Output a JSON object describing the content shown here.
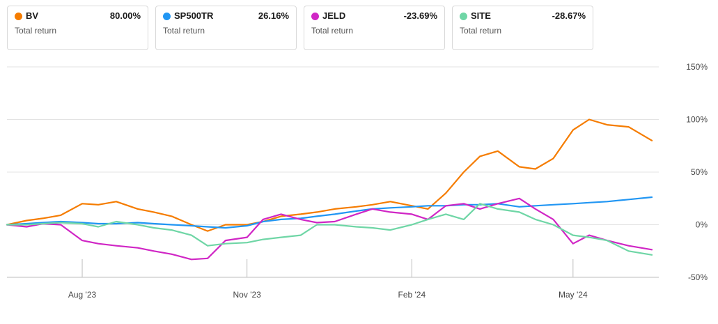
{
  "legend": [
    {
      "ticker": "BV",
      "value": "80.00%",
      "label": "Total return",
      "color": "#f57c00"
    },
    {
      "ticker": "SP500TR",
      "value": "26.16%",
      "label": "Total return",
      "color": "#2196f3"
    },
    {
      "ticker": "JELD",
      "value": "-23.69%",
      "label": "Total return",
      "color": "#d026c5"
    },
    {
      "ticker": "SITE",
      "value": "-28.67%",
      "label": "Total return",
      "color": "#6fd6a6"
    }
  ],
  "chart_data": {
    "type": "line",
    "y_ticks": [
      "150%",
      "100%",
      "50%",
      "0%",
      "-50%"
    ],
    "y_tick_values": [
      150,
      100,
      50,
      0,
      -50
    ],
    "ylim": [
      -50,
      150
    ],
    "x_ticks": [
      "Aug '23",
      "Nov '23",
      "Feb '24",
      "May '24"
    ],
    "x_tick_positions": [
      "2023-08-01",
      "2023-11-01",
      "2024-02-01",
      "2024-05-01"
    ],
    "xlim": [
      "2023-06-20",
      "2024-06-14"
    ],
    "grid": "horizontal",
    "x": [
      "2023-06-20",
      "2023-07-01",
      "2023-07-10",
      "2023-07-20",
      "2023-08-01",
      "2023-08-10",
      "2023-08-20",
      "2023-09-01",
      "2023-09-10",
      "2023-09-20",
      "2023-10-01",
      "2023-10-10",
      "2023-10-20",
      "2023-11-01",
      "2023-11-10",
      "2023-11-20",
      "2023-12-01",
      "2023-12-10",
      "2023-12-20",
      "2024-01-01",
      "2024-01-10",
      "2024-01-20",
      "2024-02-01",
      "2024-02-10",
      "2024-02-20",
      "2024-03-01",
      "2024-03-10",
      "2024-03-20",
      "2024-04-01",
      "2024-04-10",
      "2024-04-20",
      "2024-05-01",
      "2024-05-10",
      "2024-05-20",
      "2024-06-01",
      "2024-06-14"
    ],
    "series": [
      {
        "name": "BV",
        "color": "#f57c00",
        "values": [
          0,
          4,
          6,
          9,
          20,
          19,
          22,
          15,
          12,
          8,
          0,
          -6,
          0,
          0,
          3,
          8,
          10,
          12,
          15,
          17,
          19,
          22,
          18,
          15,
          30,
          50,
          65,
          70,
          55,
          53,
          63,
          90,
          100,
          95,
          93,
          80
        ]
      },
      {
        "name": "SP500TR",
        "color": "#2196f3",
        "values": [
          0,
          1,
          2,
          3,
          2,
          1,
          1,
          2,
          1,
          0,
          -1,
          -2,
          -3,
          -1,
          3,
          5,
          6,
          8,
          10,
          13,
          15,
          16,
          17,
          18,
          18,
          19,
          19,
          20,
          17,
          18,
          19,
          20,
          21,
          22,
          24,
          26.16
        ]
      },
      {
        "name": "JELD",
        "color": "#d026c5",
        "values": [
          0,
          -2,
          1,
          0,
          -15,
          -18,
          -20,
          -22,
          -25,
          -28,
          -33,
          -32,
          -15,
          -12,
          5,
          10,
          5,
          2,
          3,
          10,
          15,
          12,
          10,
          5,
          18,
          20,
          15,
          20,
          25,
          15,
          5,
          -18,
          -10,
          -15,
          -20,
          -23.69
        ]
      },
      {
        "name": "SITE",
        "color": "#6fd6a6",
        "values": [
          0,
          0,
          1,
          2,
          1,
          -2,
          3,
          0,
          -3,
          -5,
          -10,
          -20,
          -18,
          -17,
          -14,
          -12,
          -10,
          0,
          0,
          -2,
          -3,
          -5,
          0,
          5,
          10,
          5,
          20,
          15,
          12,
          5,
          0,
          -10,
          -12,
          -15,
          -25,
          -28.67
        ]
      }
    ]
  }
}
